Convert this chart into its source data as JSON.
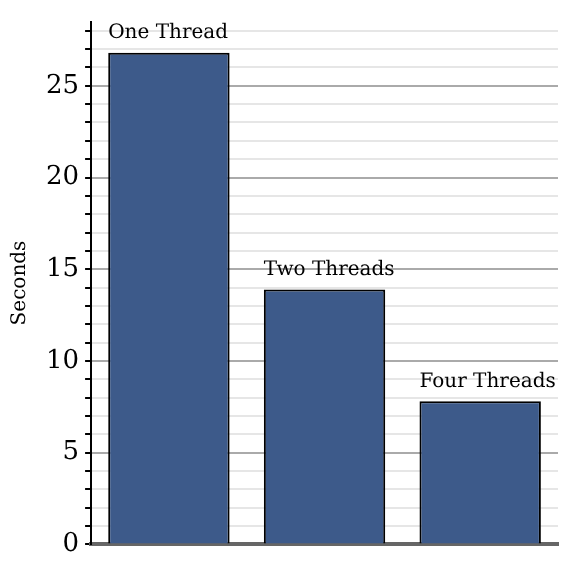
{
  "chart_data": {
    "type": "bar",
    "categories": [
      "One Thread",
      "Two Threads",
      "Four Threads"
    ],
    "values": [
      26.8,
      13.9,
      7.8
    ],
    "color": "#3d5a8a",
    "ylabel": "Seconds",
    "ylim": [
      0,
      28.5
    ],
    "yticks": [
      0,
      {
        "value": 1,
        "label": null
      },
      {
        "value": 2,
        "label": null
      },
      {
        "value": 3,
        "label": null
      },
      {
        "value": 4,
        "label": null
      },
      5,
      {
        "value": 6,
        "label": null
      },
      {
        "value": 7,
        "label": null
      },
      {
        "value": 8,
        "label": null
      },
      {
        "value": 9,
        "label": null
      },
      10,
      {
        "value": 11,
        "label": null
      },
      {
        "value": 12,
        "label": null
      },
      {
        "value": 13,
        "label": null
      },
      {
        "value": 14,
        "label": null
      },
      15,
      {
        "value": 16,
        "label": null
      },
      {
        "value": 17,
        "label": null
      },
      {
        "value": 18,
        "label": null
      },
      {
        "value": 19,
        "label": null
      },
      20,
      {
        "value": 21,
        "label": null
      },
      {
        "value": 22,
        "label": null
      },
      {
        "value": 23,
        "label": null
      },
      {
        "value": 24,
        "label": null
      },
      25,
      {
        "value": 26,
        "label": null
      },
      {
        "value": 27,
        "label": null
      },
      {
        "value": 28,
        "label": null
      }
    ],
    "grid": "y",
    "tick_labels": "y"
  }
}
